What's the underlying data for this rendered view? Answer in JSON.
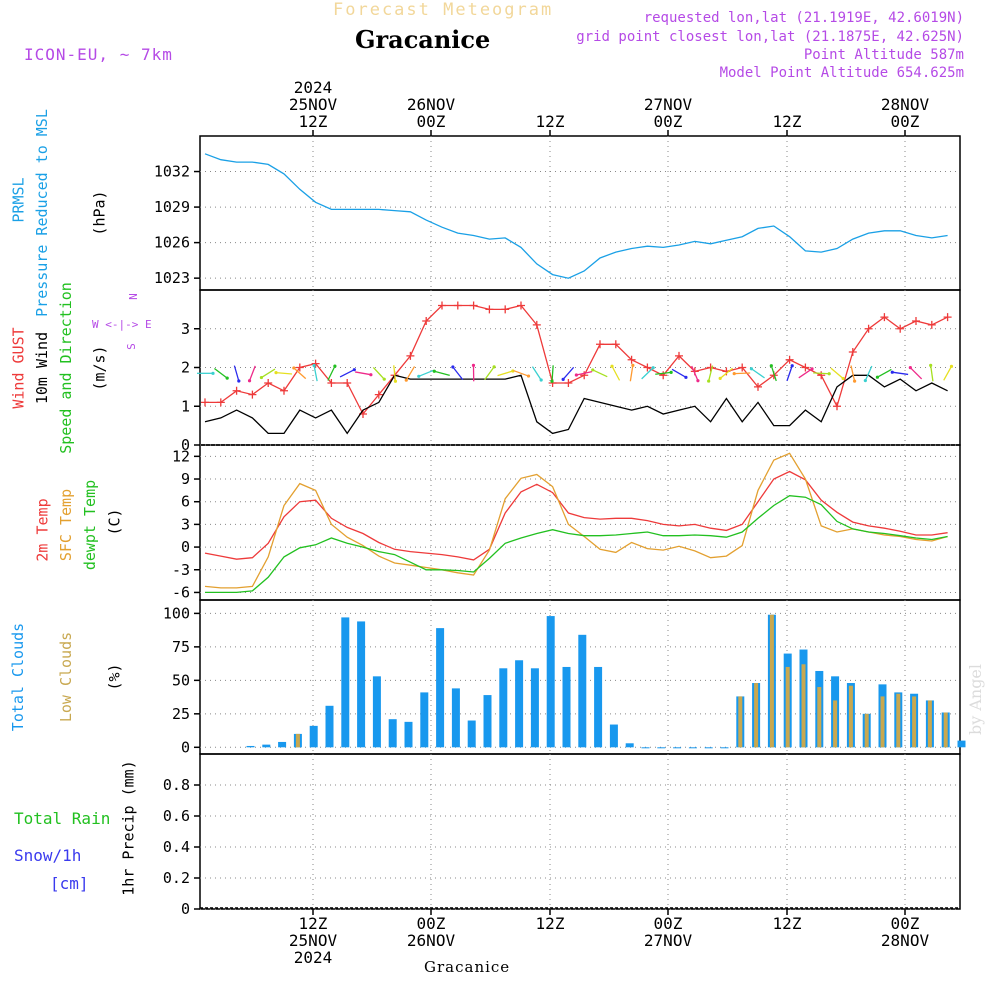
{
  "header": {
    "forecast_title": "Forecast Meteogram",
    "station": "Gracanice",
    "model": "ICON-EU, ~ 7km",
    "requested": "requested lon,lat (21.1919E, 42.6019N)",
    "grid_point": "grid point closest lon,lat (21.1875E, 42.625N)",
    "point_altitude": "Point Altitude 587m",
    "model_altitude": "Model Point Altitude 654.625m"
  },
  "time_axis_top": [
    {
      "lines": [
        "2024",
        "25NOV",
        "12Z"
      ]
    },
    {
      "lines": [
        "26NOV",
        "00Z"
      ]
    },
    {
      "lines": [
        "12Z"
      ]
    },
    {
      "lines": [
        "27NOV",
        "00Z"
      ]
    },
    {
      "lines": [
        "12Z"
      ]
    },
    {
      "lines": [
        "28NOV",
        "00Z"
      ]
    }
  ],
  "time_axis_bottom": [
    {
      "lines": [
        "12Z",
        "25NOV",
        "2024"
      ]
    },
    {
      "lines": [
        "00Z",
        "26NOV"
      ]
    },
    {
      "lines": [
        "12Z"
      ]
    },
    {
      "lines": [
        "00Z",
        "27NOV"
      ]
    },
    {
      "lines": [
        "12Z"
      ]
    },
    {
      "lines": [
        "00Z",
        "28NOV"
      ]
    }
  ],
  "footer_station": "Gracanice",
  "watermark": "by Angel",
  "panel_labels": {
    "pressure": {
      "lines": [
        "PRMSL",
        "Pressure Reduced to MSL"
      ],
      "unit": "(hPa)"
    },
    "wind": {
      "lines": [
        "Wind GUST",
        "10m Wind",
        "Speed and Direction"
      ],
      "unit": "(m/s)",
      "compass": [
        "N",
        "W <-|-> E",
        "S"
      ]
    },
    "temp": {
      "lines": [
        "2m Temp",
        "SFC Temp",
        "dewpt Temp"
      ],
      "unit": "(C)"
    },
    "clouds": {
      "lines": [
        "Total Clouds",
        "Low Clouds"
      ],
      "unit": "(%)"
    },
    "precip": {
      "lines": [
        "Total  Rain",
        "Snow/1h",
        "[cm]"
      ],
      "unit": "1hr Precip (mm)"
    }
  },
  "colors": {
    "pressure": "#1aa0e6",
    "gust": "#ee3a3a",
    "wind": "#000000",
    "t2m": "#ee3a3a",
    "sfc": "#e3a030",
    "dewpt": "#22c020",
    "total_clouds": "#1898ee",
    "low_clouds": "#c8a850",
    "rain": "#22c020",
    "snow": "#3a3aee",
    "wind_arrows": [
      "#3ad0d0",
      "#22c020",
      "#2a2aee",
      "#ee2a8a",
      "#a6e020",
      "#e6e020",
      "#ff9a30"
    ]
  },
  "chart_data": [
    {
      "type": "line",
      "panel": "pressure",
      "x_range": [
        0,
        95
      ],
      "x_note": "hours after the 25NOV 00Z day boundary reference; 12Z 25NOV = 14",
      "ylim": [
        1022,
        1035
      ],
      "yticks": [
        1023,
        1026,
        1029,
        1032
      ],
      "series": [
        {
          "name": "PRMSL",
          "x": [
            0,
            2,
            4,
            6,
            8,
            10,
            12,
            14,
            16,
            18,
            20,
            22,
            24,
            26,
            28,
            30,
            32,
            34,
            36,
            38,
            40,
            42,
            44,
            46,
            48,
            50,
            52,
            54,
            56,
            58,
            60,
            62,
            64,
            66,
            68,
            70,
            72,
            74,
            76,
            78,
            80,
            82,
            84,
            86,
            88,
            90,
            92,
            94
          ],
          "y": [
            1033.5,
            1033.0,
            1032.8,
            1032.8,
            1032.6,
            1031.8,
            1030.5,
            1029.4,
            1028.8,
            1028.8,
            1028.8,
            1028.8,
            1028.7,
            1028.6,
            1027.9,
            1027.3,
            1026.8,
            1026.6,
            1026.3,
            1026.4,
            1025.6,
            1024.2,
            1023.3,
            1023.0,
            1023.6,
            1024.7,
            1025.2,
            1025.5,
            1025.7,
            1025.6,
            1025.8,
            1026.1,
            1025.9,
            1026.2,
            1026.5,
            1027.2,
            1027.4,
            1026.5,
            1025.3,
            1025.2,
            1025.5,
            1026.3,
            1026.8,
            1027.0,
            1027.0,
            1026.6,
            1026.4,
            1026.6
          ]
        }
      ]
    },
    {
      "type": "line",
      "panel": "wind",
      "ylim": [
        0,
        4
      ],
      "yticks": [
        0,
        1,
        2,
        3
      ],
      "series": [
        {
          "name": "Wind GUST",
          "x": [
            0,
            2,
            4,
            6,
            8,
            10,
            12,
            14,
            16,
            18,
            20,
            22,
            24,
            26,
            28,
            30,
            32,
            34,
            36,
            38,
            40,
            42,
            44,
            46,
            48,
            50,
            52,
            54,
            56,
            58,
            60,
            62,
            64,
            66,
            68,
            70,
            72,
            74,
            76,
            78,
            80,
            82,
            84,
            86,
            88,
            90,
            92,
            94
          ],
          "y": [
            1.1,
            1.1,
            1.4,
            1.3,
            1.6,
            1.4,
            2.0,
            2.1,
            1.6,
            1.6,
            0.8,
            1.3,
            1.8,
            2.3,
            3.2,
            3.6,
            3.6,
            3.6,
            3.5,
            3.5,
            3.6,
            3.1,
            1.6,
            1.6,
            1.8,
            2.6,
            2.6,
            2.2,
            2.0,
            1.8,
            2.3,
            1.9,
            2.0,
            1.9,
            2.0,
            1.5,
            1.8,
            2.2,
            2.0,
            1.8,
            1.0,
            2.4,
            3.0,
            3.3,
            3.0,
            3.2,
            3.1,
            3.3
          ]
        },
        {
          "name": "10m Wind",
          "x": [
            0,
            2,
            4,
            6,
            8,
            10,
            12,
            14,
            16,
            18,
            20,
            22,
            24,
            26,
            28,
            30,
            32,
            34,
            36,
            38,
            40,
            42,
            44,
            46,
            48,
            50,
            52,
            54,
            56,
            58,
            60,
            62,
            64,
            66,
            68,
            70,
            72,
            74,
            76,
            78,
            80,
            82,
            84,
            86,
            88,
            90,
            92,
            94
          ],
          "y": [
            0.6,
            0.7,
            0.9,
            0.7,
            0.3,
            0.3,
            0.9,
            0.7,
            0.9,
            0.3,
            0.9,
            1.1,
            1.8,
            1.7,
            1.7,
            1.7,
            1.7,
            1.7,
            1.7,
            1.7,
            1.8,
            0.6,
            0.3,
            0.4,
            1.2,
            1.1,
            1.0,
            0.9,
            1.0,
            0.8,
            0.9,
            1.0,
            0.6,
            1.2,
            0.6,
            1.1,
            0.5,
            0.5,
            0.9,
            0.6,
            1.5,
            1.8,
            1.8,
            1.5,
            1.7,
            1.4,
            1.6,
            1.4
          ]
        }
      ]
    },
    {
      "type": "line",
      "panel": "temperature",
      "ylim": [
        -7,
        13.5
      ],
      "yticks": [
        -6,
        -3,
        0,
        3,
        6,
        9,
        12
      ],
      "series": [
        {
          "name": "2m Temp",
          "x": [
            0,
            2,
            4,
            6,
            8,
            10,
            12,
            14,
            16,
            18,
            20,
            22,
            24,
            26,
            28,
            30,
            32,
            34,
            36,
            38,
            40,
            42,
            44,
            46,
            48,
            50,
            52,
            54,
            56,
            58,
            60,
            62,
            64,
            66,
            68,
            70,
            72,
            74,
            76,
            78,
            80,
            82,
            84,
            86,
            88,
            90,
            92,
            94
          ],
          "y": [
            -0.8,
            -1.2,
            -1.6,
            -1.4,
            0.5,
            4.0,
            6.0,
            6.2,
            3.8,
            2.6,
            1.8,
            0.6,
            -0.3,
            -0.6,
            -0.8,
            -1.0,
            -1.3,
            -1.7,
            -0.3,
            4.5,
            7.3,
            8.3,
            7.2,
            4.5,
            3.9,
            3.7,
            3.8,
            3.8,
            3.5,
            3.0,
            2.8,
            3.0,
            2.5,
            2.2,
            3.0,
            6.0,
            9.0,
            10.0,
            8.9,
            6.2,
            4.6,
            3.3,
            2.8,
            2.5,
            2.1,
            1.6,
            1.6,
            1.9
          ]
        },
        {
          "name": "SFC Temp",
          "x": [
            0,
            2,
            4,
            6,
            8,
            10,
            12,
            14,
            16,
            18,
            20,
            22,
            24,
            26,
            28,
            30,
            32,
            34,
            36,
            38,
            40,
            42,
            44,
            46,
            48,
            50,
            52,
            54,
            56,
            58,
            60,
            62,
            64,
            66,
            68,
            70,
            72,
            74,
            76,
            78,
            80,
            82,
            84,
            86,
            88,
            90,
            92,
            94
          ],
          "y": [
            -5.2,
            -5.4,
            -5.4,
            -5.2,
            -1.3,
            5.5,
            8.4,
            7.5,
            3.0,
            1.3,
            0.2,
            -1.2,
            -2.1,
            -2.4,
            -2.7,
            -3.0,
            -3.4,
            -3.7,
            -0.4,
            6.4,
            9.1,
            9.6,
            8.0,
            3.0,
            1.4,
            -0.3,
            -0.7,
            0.6,
            -0.2,
            -0.4,
            0.1,
            -0.5,
            -1.4,
            -1.2,
            0.2,
            7.5,
            11.5,
            12.4,
            9.0,
            2.8,
            2.0,
            2.4,
            2.0,
            1.6,
            1.4,
            1.0,
            0.8,
            1.4
          ]
        },
        {
          "name": "dewpt Temp",
          "x": [
            0,
            2,
            4,
            6,
            8,
            10,
            12,
            14,
            16,
            18,
            20,
            22,
            24,
            26,
            28,
            30,
            32,
            34,
            36,
            38,
            40,
            42,
            44,
            46,
            48,
            50,
            52,
            54,
            56,
            58,
            60,
            62,
            64,
            66,
            68,
            70,
            72,
            74,
            76,
            78,
            80,
            82,
            84,
            86,
            88,
            90,
            92,
            94
          ],
          "y": [
            -6.0,
            -6.0,
            -6.0,
            -5.8,
            -4.0,
            -1.3,
            -0.1,
            0.3,
            1.2,
            0.5,
            0.0,
            -0.6,
            -1.0,
            -2.0,
            -3.0,
            -3.0,
            -3.1,
            -3.3,
            -1.5,
            0.5,
            1.2,
            1.8,
            2.3,
            1.8,
            1.5,
            1.5,
            1.6,
            1.8,
            2.0,
            1.5,
            1.5,
            1.6,
            1.5,
            1.3,
            2.0,
            3.8,
            5.5,
            6.8,
            6.6,
            5.6,
            3.4,
            2.4,
            2.0,
            1.8,
            1.5,
            1.2,
            1.0,
            1.4
          ]
        }
      ]
    },
    {
      "type": "bar",
      "panel": "clouds",
      "ylim": [
        -5,
        110
      ],
      "yticks": [
        0,
        25,
        50,
        75,
        100
      ],
      "series": [
        {
          "name": "Total Clouds",
          "x": [
            5,
            7,
            9,
            11,
            13,
            15,
            17,
            19,
            21,
            23,
            25,
            27,
            29,
            31,
            33,
            35,
            37,
            39,
            41,
            43,
            45,
            47,
            49,
            51,
            53,
            55,
            57,
            59,
            61,
            63,
            65,
            67,
            69,
            71,
            73,
            75,
            77,
            79,
            81,
            83,
            85,
            87,
            89,
            91,
            93,
            95
          ],
          "values": [
            1,
            2,
            4,
            10,
            16,
            31,
            97,
            94,
            53,
            21,
            19,
            41,
            89,
            44,
            20,
            39,
            59,
            65,
            59,
            98,
            60,
            84,
            60,
            17,
            3,
            0,
            0,
            0,
            0,
            0,
            0,
            38,
            48,
            99,
            70,
            73,
            57,
            53,
            48,
            25,
            47,
            41,
            40,
            35,
            26,
            5
          ]
        },
        {
          "name": "Low Clouds",
          "x": [
            5,
            7,
            9,
            11,
            13,
            15,
            17,
            19,
            21,
            23,
            25,
            27,
            29,
            31,
            33,
            35,
            37,
            39,
            41,
            43,
            45,
            47,
            49,
            51,
            53,
            55,
            57,
            59,
            61,
            63,
            65,
            67,
            69,
            71,
            73,
            75,
            77,
            79,
            81,
            83,
            85,
            87,
            89,
            91,
            93,
            95
          ],
          "values": [
            0,
            0,
            0,
            10,
            0,
            0,
            0,
            0,
            0,
            0,
            0,
            0,
            0,
            0,
            0,
            0,
            0,
            0,
            0,
            0,
            0,
            0,
            0,
            0,
            0,
            0,
            0,
            0,
            0,
            0,
            0,
            38,
            48,
            99,
            60,
            62,
            45,
            35,
            46,
            25,
            38,
            40,
            38,
            35,
            26,
            0
          ]
        }
      ]
    },
    {
      "type": "bar",
      "panel": "precip",
      "ylim": [
        0,
        1
      ],
      "yticks": [
        0,
        0.2,
        0.4,
        0.6,
        0.8
      ],
      "series": [
        {
          "name": "Total Rain",
          "values": []
        },
        {
          "name": "Snow/1h",
          "values": []
        }
      ]
    }
  ]
}
